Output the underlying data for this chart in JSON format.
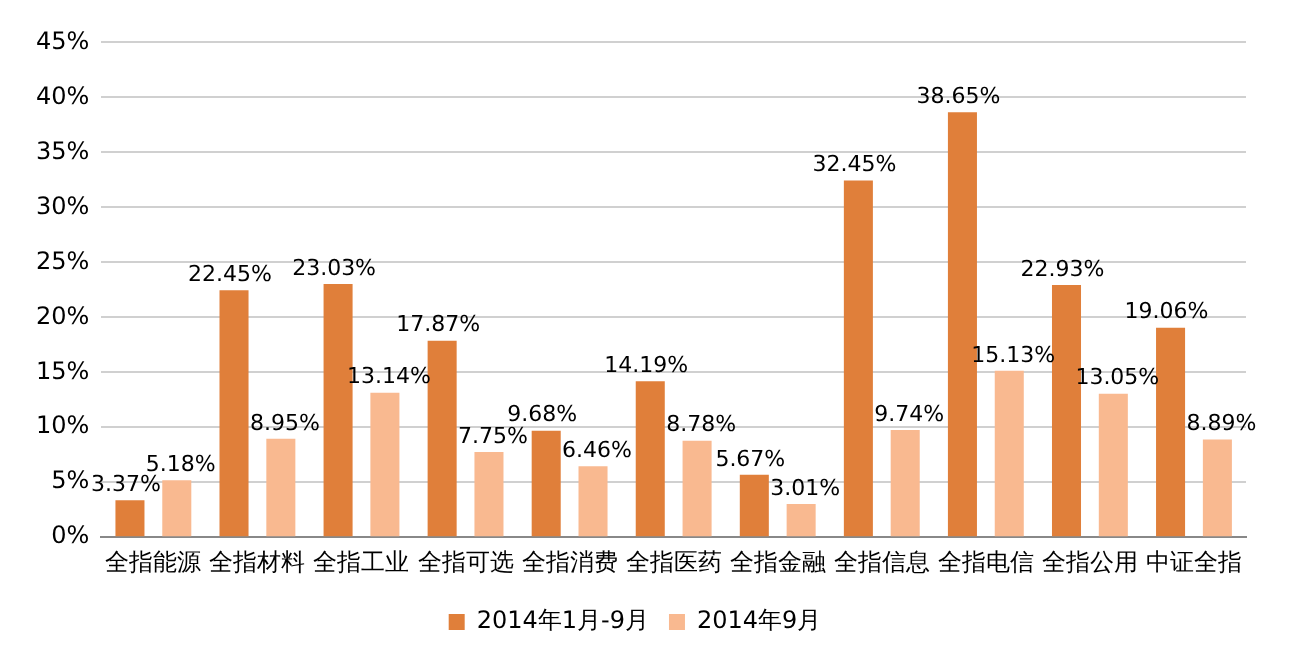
{
  "chart_data": {
    "type": "bar",
    "categories": [
      "全指能源",
      "全指材料",
      "全指工业",
      "全指可选",
      "全指消费",
      "全指医药",
      "全指金融",
      "全指信息",
      "全指电信",
      "全指公用",
      "中证全指"
    ],
    "series": [
      {
        "name": "2014年1月-9月",
        "color": "#e07f3a",
        "values": [
          3.37,
          22.45,
          23.03,
          17.87,
          9.68,
          14.19,
          5.67,
          32.45,
          38.65,
          22.93,
          19.06
        ],
        "value_labels": [
          "3.37%",
          "22.45%",
          "23.03%",
          "17.87%",
          "9.68%",
          "14.19%",
          "5.67%",
          "32.45%",
          "38.65%",
          "22.93%",
          "19.06%"
        ]
      },
      {
        "name": "2014年9月",
        "color": "#f9b990",
        "values": [
          5.18,
          8.95,
          13.14,
          7.75,
          6.46,
          8.78,
          3.01,
          9.74,
          15.13,
          13.05,
          8.89
        ],
        "value_labels": [
          "5.18%",
          "8.95%",
          "13.14%",
          "7.75%",
          "6.46%",
          "8.78%",
          "3.01%",
          "9.74%",
          "15.13%",
          "13.05%",
          "8.89%"
        ]
      }
    ],
    "ylim": [
      0,
      45
    ],
    "yticks": [
      {
        "value": 0,
        "label": "0%"
      },
      {
        "value": 5,
        "label": "5%"
      },
      {
        "value": 10,
        "label": "10%"
      },
      {
        "value": 15,
        "label": "15%"
      },
      {
        "value": 20,
        "label": "20%"
      },
      {
        "value": 25,
        "label": "25%"
      },
      {
        "value": 30,
        "label": "30%"
      },
      {
        "value": 35,
        "label": "35%"
      },
      {
        "value": 40,
        "label": "40%"
      },
      {
        "value": 45,
        "label": "45%"
      }
    ],
    "grid": "y",
    "legend": "bottom"
  }
}
